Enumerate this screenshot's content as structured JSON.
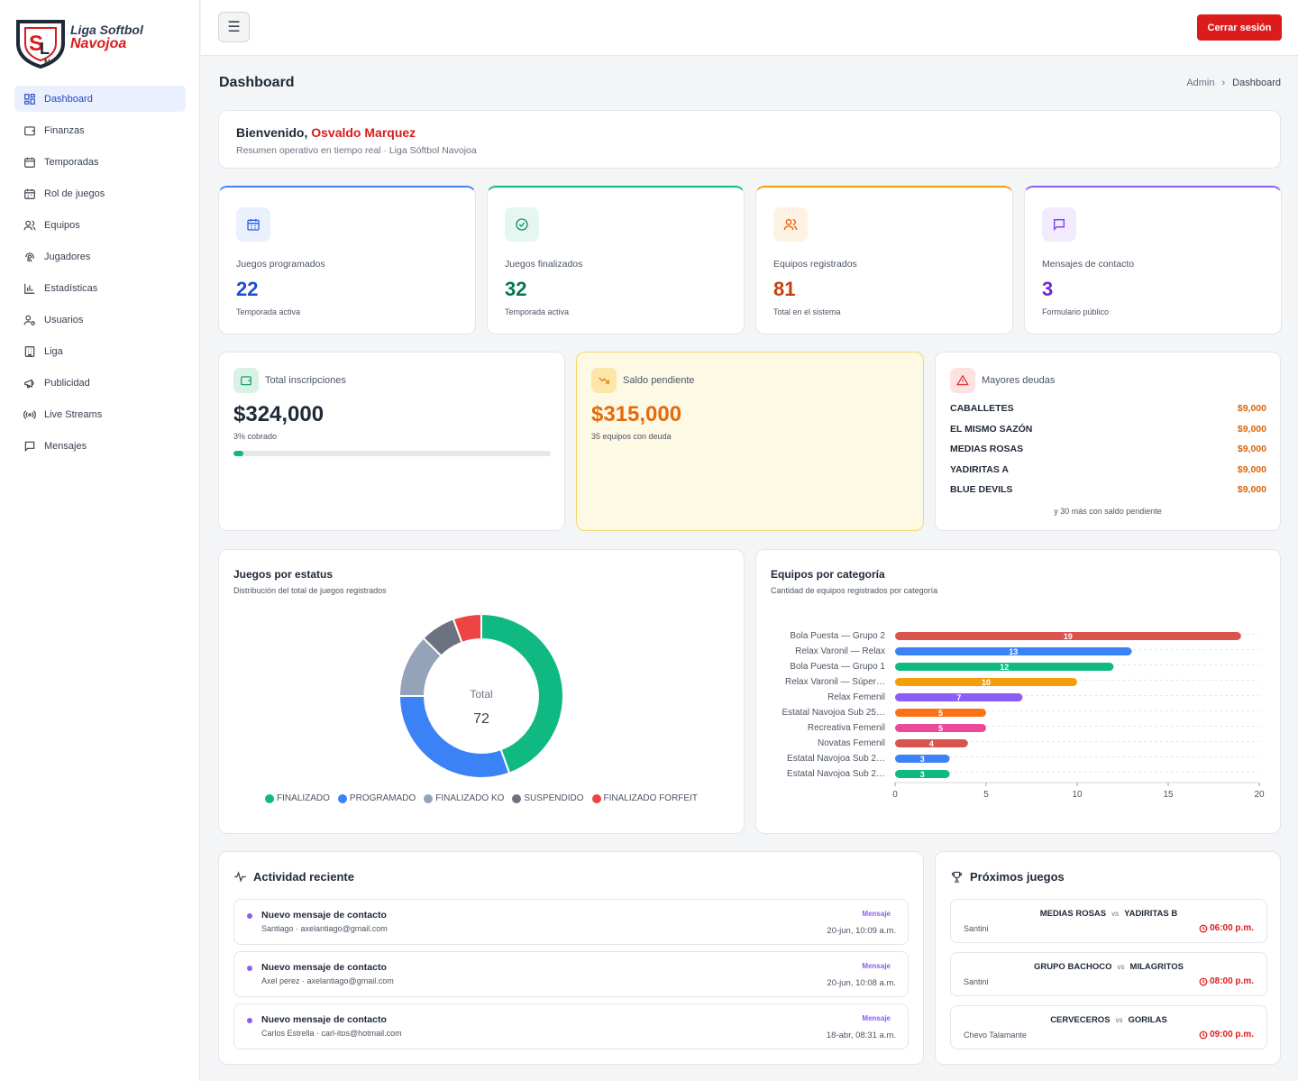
{
  "brand": {
    "line1": "Liga Softbol",
    "line2": "Navojoa"
  },
  "sidebar": {
    "items": [
      {
        "label": "Dashboard",
        "icon": "dashboard-icon",
        "active": true
      },
      {
        "label": "Finanzas",
        "icon": "wallet-icon"
      },
      {
        "label": "Temporadas",
        "icon": "calendar-icon"
      },
      {
        "label": "Rol de juegos",
        "icon": "calendar-days-icon"
      },
      {
        "label": "Equipos",
        "icon": "users-icon"
      },
      {
        "label": "Jugadores",
        "icon": "fingerprint-icon"
      },
      {
        "label": "Estadísticas",
        "icon": "bar-chart-icon"
      },
      {
        "label": "Usuarios",
        "icon": "user-cog-icon"
      },
      {
        "label": "Liga",
        "icon": "building-icon"
      },
      {
        "label": "Publicidad",
        "icon": "megaphone-icon"
      },
      {
        "label": "Live Streams",
        "icon": "radio-icon"
      },
      {
        "label": "Mensajes",
        "icon": "message-icon"
      }
    ]
  },
  "topbar": {
    "menu_icon": "☰",
    "logout_label": "Cerrar sesión"
  },
  "page": {
    "title": "Dashboard",
    "breadcrumb": [
      "Admin",
      "Dashboard"
    ]
  },
  "welcome": {
    "greeting": "Bienvenido, ",
    "name": "Osvaldo Marquez",
    "subtitle": "Resumen operativo en tiempo real · Liga Sóftbol Navojoa"
  },
  "stats": [
    {
      "label": "Juegos programados",
      "value": "22",
      "sub": "Temporada activa",
      "color": "#1d4ed8",
      "icon": "calendar-icon"
    },
    {
      "label": "Juegos finalizados",
      "value": "32",
      "sub": "Temporada activa",
      "color": "#047857",
      "icon": "check-circle-icon"
    },
    {
      "label": "Equipos registrados",
      "value": "81",
      "sub": "Total en el sistema",
      "color": "#c2410c",
      "icon": "users-icon"
    },
    {
      "label": "Mensajes de contacto",
      "value": "3",
      "sub": "Formulario público",
      "color": "#6d28d9",
      "icon": "message-icon"
    }
  ],
  "finance": {
    "total": {
      "label": "Total inscripciones",
      "value": "$324,000",
      "sub": "3% cobrado",
      "progress": 0.03
    },
    "pending": {
      "label": "Saldo pendiente",
      "value": "$315,000",
      "sub": "35 equipos con deuda"
    },
    "debts": {
      "label": "Mayores deudas",
      "rows": [
        {
          "team": "CABALLETES",
          "amount": "$9,000"
        },
        {
          "team": "EL MISMO SAZÓN",
          "amount": "$9,000"
        },
        {
          "team": "MEDIAS ROSAS",
          "amount": "$9,000"
        },
        {
          "team": "YADIRITAS A",
          "amount": "$9,000"
        },
        {
          "team": "BLUE DEVILS",
          "amount": "$9,000"
        }
      ],
      "more": "y 30 más con saldo pendiente"
    }
  },
  "chart_data": [
    {
      "type": "pie",
      "title": "Juegos por estatus",
      "subtitle": "Distribución del total de juegos registrados",
      "center_label": "Total",
      "center_value": "72",
      "categories": [
        "FINALIZADO",
        "PROGRAMADO",
        "FINALIZADO KO",
        "SUSPENDIDO",
        "FINALIZADO FORFEIT"
      ],
      "values": [
        32,
        22,
        9,
        5,
        4
      ],
      "colors": [
        "#10b981",
        "#3b82f6",
        "#94a3b8",
        "#6b7280",
        "#ef4444"
      ],
      "legend": "bottom"
    },
    {
      "type": "bar",
      "orientation": "horizontal",
      "title": "Equipos por categoría",
      "subtitle": "Cantidad de equipos registrados por categoría",
      "categories": [
        "Bola Puesta — Grupo 2",
        "Relax Varonil — Relax",
        "Bola Puesta — Grupo 1",
        "Relax Varonil — Súper…",
        "Relax Femenil",
        "Estatal Navojoa Sub 25…",
        "Recreativa Femenil",
        "Novatas Femenil",
        "Estatal Navojoa Sub 2…",
        "Estatal Navojoa Sub 2…"
      ],
      "values": [
        19,
        13,
        12,
        10,
        7,
        5,
        5,
        4,
        3,
        3
      ],
      "colors": [
        "#d9534f",
        "#3b82f6",
        "#10b981",
        "#f59e0b",
        "#8b5cf6",
        "#f97316",
        "#ec4899",
        "#d9534f",
        "#3b82f6",
        "#10b981"
      ],
      "xlim": [
        0,
        20
      ],
      "xticks": [
        "0",
        "5",
        "10",
        "15",
        "20"
      ],
      "grid": true
    }
  ],
  "activity": {
    "title": "Actividad reciente",
    "items": [
      {
        "title": "Nuevo mensaje de contacto",
        "sub": "Santiago · axelantiago@gmail.com",
        "tag": "Mensaje",
        "date": "20-jun, 10:09 a.m."
      },
      {
        "title": "Nuevo mensaje de contacto",
        "sub": "Axel perez · axelantiago@gmail.com",
        "tag": "Mensaje",
        "date": "20-jun, 10:08 a.m."
      },
      {
        "title": "Nuevo mensaje de contacto",
        "sub": "Carlos Estrella · carl-itos@hotmail.com",
        "tag": "Mensaje",
        "date": "18-abr, 08:31 a.m."
      }
    ]
  },
  "games": {
    "title": "Próximos juegos",
    "items": [
      {
        "home": "MEDIAS ROSAS",
        "vs": "vs",
        "away": "YADIRITAS B",
        "venue": "Santini",
        "time": "06:00 p.m."
      },
      {
        "home": "GRUPO BACHOCO",
        "vs": "vs",
        "away": "MILAGRITOS",
        "venue": "Santini",
        "time": "08:00 p.m."
      },
      {
        "home": "CERVECEROS",
        "vs": "vs",
        "away": "GORILAS",
        "venue": "Chevo Talamante",
        "time": "09:00 p.m."
      }
    ]
  }
}
